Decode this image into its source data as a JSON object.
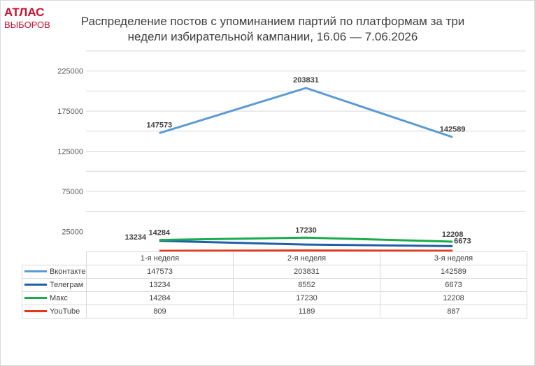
{
  "logo": {
    "top": "АТЛАС",
    "bottom": "ВЫБОРОВ"
  },
  "title_line1": "Распределение постов с упоминанием партий по платформам за три",
  "title_line2": "недели избирательной кампании, 16.06 — 7.06.2026",
  "chart_data": {
    "type": "line",
    "title": "Распределение постов с упоминанием партий по платформам за три недели избирательной кампании, 16.06 — 7.06.2026",
    "categories": [
      "1-я неделя",
      "2-я неделя",
      "3-я неделя"
    ],
    "series": [
      {
        "name": "Вконтакте",
        "values": [
          147573,
          203831,
          142589
        ],
        "color": "#5b9bd5",
        "labels_shown": true
      },
      {
        "name": "Телеграм",
        "values": [
          13234,
          8552,
          6673
        ],
        "color": "#1f5fa8",
        "labels_shown": true
      },
      {
        "name": "Макс",
        "values": [
          14284,
          17230,
          12208
        ],
        "color": "#1aab4a",
        "labels_shown": true
      },
      {
        "name": "YouTube",
        "values": [
          809,
          1189,
          887
        ],
        "color": "#e8361c",
        "labels_shown": false
      }
    ],
    "yticks": [
      "25000",
      "75000",
      "125000",
      "175000",
      "225000"
    ],
    "ylim": [
      0,
      250000
    ],
    "grid": true,
    "legend": "data-table"
  }
}
